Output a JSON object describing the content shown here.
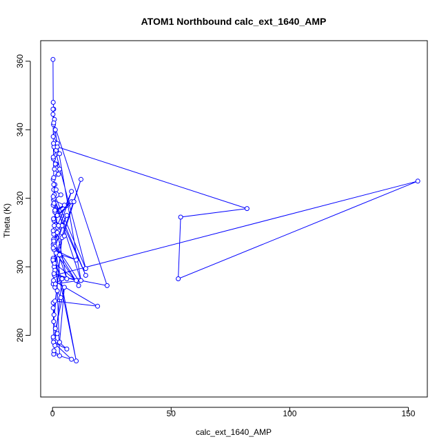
{
  "chart_data": {
    "type": "line",
    "title": "ATOM1 Northbound calc_ext_1640_AMP",
    "xlabel": "calc_ext_1640_AMP",
    "ylabel": "Theta (K)",
    "xlim": [
      -5,
      158
    ],
    "ylim": [
      262,
      366
    ],
    "x_ticks": [
      0,
      50,
      100,
      150
    ],
    "y_ticks": [
      280,
      300,
      320,
      340,
      360
    ],
    "x_tick_labels": [
      "0",
      "50",
      "100",
      "150"
    ],
    "y_tick_labels": [
      "280",
      "300",
      "320",
      "340",
      "360"
    ],
    "grid": false,
    "legend": "none",
    "marker": "open-circle",
    "colors": {
      "series": "#0000ff",
      "axis": "#000000",
      "background": "#ffffff"
    },
    "series": [
      {
        "x": [
          0.2,
          0.3,
          0.5,
          0.2,
          0.8,
          0.4,
          1.2,
          0.3,
          2.0,
          0.6,
          3.0,
          0.4,
          1.5,
          0.8,
          2.5,
          0.3,
          1.0,
          0.5,
          3.5,
          0.4,
          5.0,
          1.0,
          2.0,
          0.6,
          4.0,
          1.2,
          0.5,
          8.0,
          2.5,
          1.0,
          0.3,
          6.0,
          0.6,
          10.0,
          1.5,
          0.4,
          12.0,
          2.0,
          0.7,
          1.0,
          0.3,
          1.0,
          2.0,
          3.5,
          0.3,
          0.5,
          5.0,
          3.0,
          1.0,
          8.0,
          0.5,
          4.0,
          1.2,
          11.0,
          0.6,
          2.0,
          0.8,
          14.0,
          0.4,
          1.5,
          0.3,
          1.2,
          3.0,
          0.5,
          0.2,
          2.0,
          82.0,
          54.0,
          53.0,
          154.0,
          0.8,
          23.0,
          0.5,
          12.0,
          0.6,
          0.3,
          1.0,
          8.0,
          0.5,
          0.7,
          2.0,
          6.0,
          0.4,
          1.0,
          11.0,
          1.5,
          0.3,
          0.8,
          10.0,
          0.6,
          0.4,
          19.0,
          1.0,
          0.3,
          0.6,
          4.0,
          0.5,
          1.2,
          2.0,
          0.3,
          6.0,
          0.4,
          1.0,
          0.6,
          3.0,
          0.5,
          1.5,
          0.3,
          14.0,
          0.6,
          1.0,
          9.0,
          0.4,
          2.5,
          0.3,
          5.0,
          0.5,
          10.0,
          0.3,
          3.0,
          0.2
        ],
        "y": [
          360.5,
          348.0,
          346.0,
          344.5,
          343.0,
          341.5,
          340.0,
          338.0,
          336.0,
          335.0,
          333.0,
          331.5,
          330.0,
          328.5,
          327.0,
          325.5,
          324.0,
          322.5,
          321.0,
          319.5,
          318.0,
          316.5,
          315.0,
          313.5,
          312.0,
          311.0,
          309.5,
          322.0,
          310.5,
          308.0,
          306.5,
          315.0,
          305.0,
          302.0,
          304.0,
          301.5,
          325.5,
          303.5,
          300.0,
          299.0,
          295.0,
          294.0,
          293.0,
          291.0,
          289.5,
          279.0,
          294.0,
          278.0,
          277.5,
          273.0,
          274.5,
          296.5,
          295.0,
          296.0,
          307.0,
          311.5,
          321.0,
          299.5,
          336.0,
          334.0,
          332.0,
          330.0,
          328.5,
          326.0,
          346.0,
          335.0,
          317.0,
          314.5,
          296.5,
          325.0,
          297.5,
          294.5,
          342.0,
          296.0,
          320.0,
          318.0,
          316.0,
          319.0,
          314.0,
          312.0,
          310.0,
          296.5,
          308.0,
          306.0,
          294.5,
          304.0,
          302.5,
          301.0,
          296.0,
          298.0,
          296.0,
          288.5,
          290.0,
          288.0,
          286.0,
          308.5,
          284.0,
          282.0,
          280.5,
          279.5,
          276.0,
          278.0,
          277.0,
          275.5,
          274.0,
          324.0,
          322.5,
          320.5,
          297.5,
          318.5,
          316.5,
          319.0,
          314.0,
          312.0,
          310.5,
          309.0,
          307.5,
          272.5,
          305.5,
          303.5,
          302.0
        ]
      }
    ]
  }
}
